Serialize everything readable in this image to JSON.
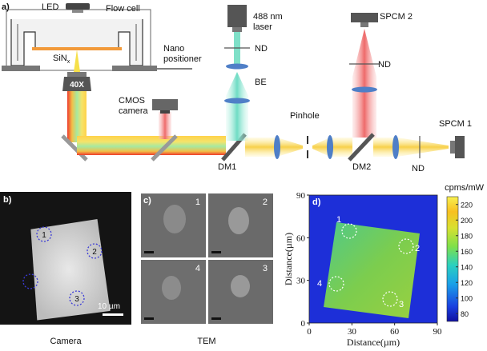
{
  "panel_a": {
    "panel_label": "a)",
    "labels": {
      "led": "LED",
      "flow_cell": "Flow cell",
      "sinx": "SiN",
      "sinx_sub": "x",
      "nano_positioner_1": "Nano",
      "nano_positioner_2": "positioner",
      "objective": "40X",
      "cmos_1": "CMOS",
      "cmos_2": "camera",
      "laser_1": "488 nm",
      "laser_2": "laser",
      "nd_laser": "ND",
      "be": "BE",
      "dm1": "DM1",
      "pinhole": "Pinhole",
      "spcm2": "SPCM 2",
      "nd_spcm2": "ND",
      "dm2": "DM2",
      "nd_spcm1": "ND",
      "spcm1": "SPCM 1"
    },
    "colors": {
      "laser_beam": "#9fe8d8",
      "emission_beam": "#f2a0a0",
      "combined_beam": "#f6d25a",
      "lens": "#4f7fc7",
      "sinx": "#f29a3a"
    }
  },
  "panel_b": {
    "panel_label": "b)",
    "caption": "Camera",
    "scale_bar": "10 µm",
    "markers": [
      "1",
      "2",
      "3",
      "4"
    ]
  },
  "panel_c": {
    "panel_label": "c)",
    "caption": "TEM",
    "tiles": [
      "1",
      "2",
      "4",
      "3"
    ]
  },
  "panel_d": {
    "panel_label": "d)",
    "markers": [
      "1",
      "2",
      "3",
      "4"
    ],
    "chart_data": {
      "type": "heatmap",
      "xlabel": "Distance(µm)",
      "ylabel": "Distance(µm)",
      "xlim": [
        0,
        90
      ],
      "ylim": [
        0,
        90
      ],
      "xticks": [
        0,
        30,
        60,
        90
      ],
      "yticks": [
        0,
        30,
        60,
        90
      ],
      "colorbar": {
        "label": "cpms/mW",
        "range": [
          70,
          230
        ],
        "ticks": [
          80,
          100,
          120,
          140,
          160,
          180,
          200,
          220
        ]
      }
    }
  }
}
